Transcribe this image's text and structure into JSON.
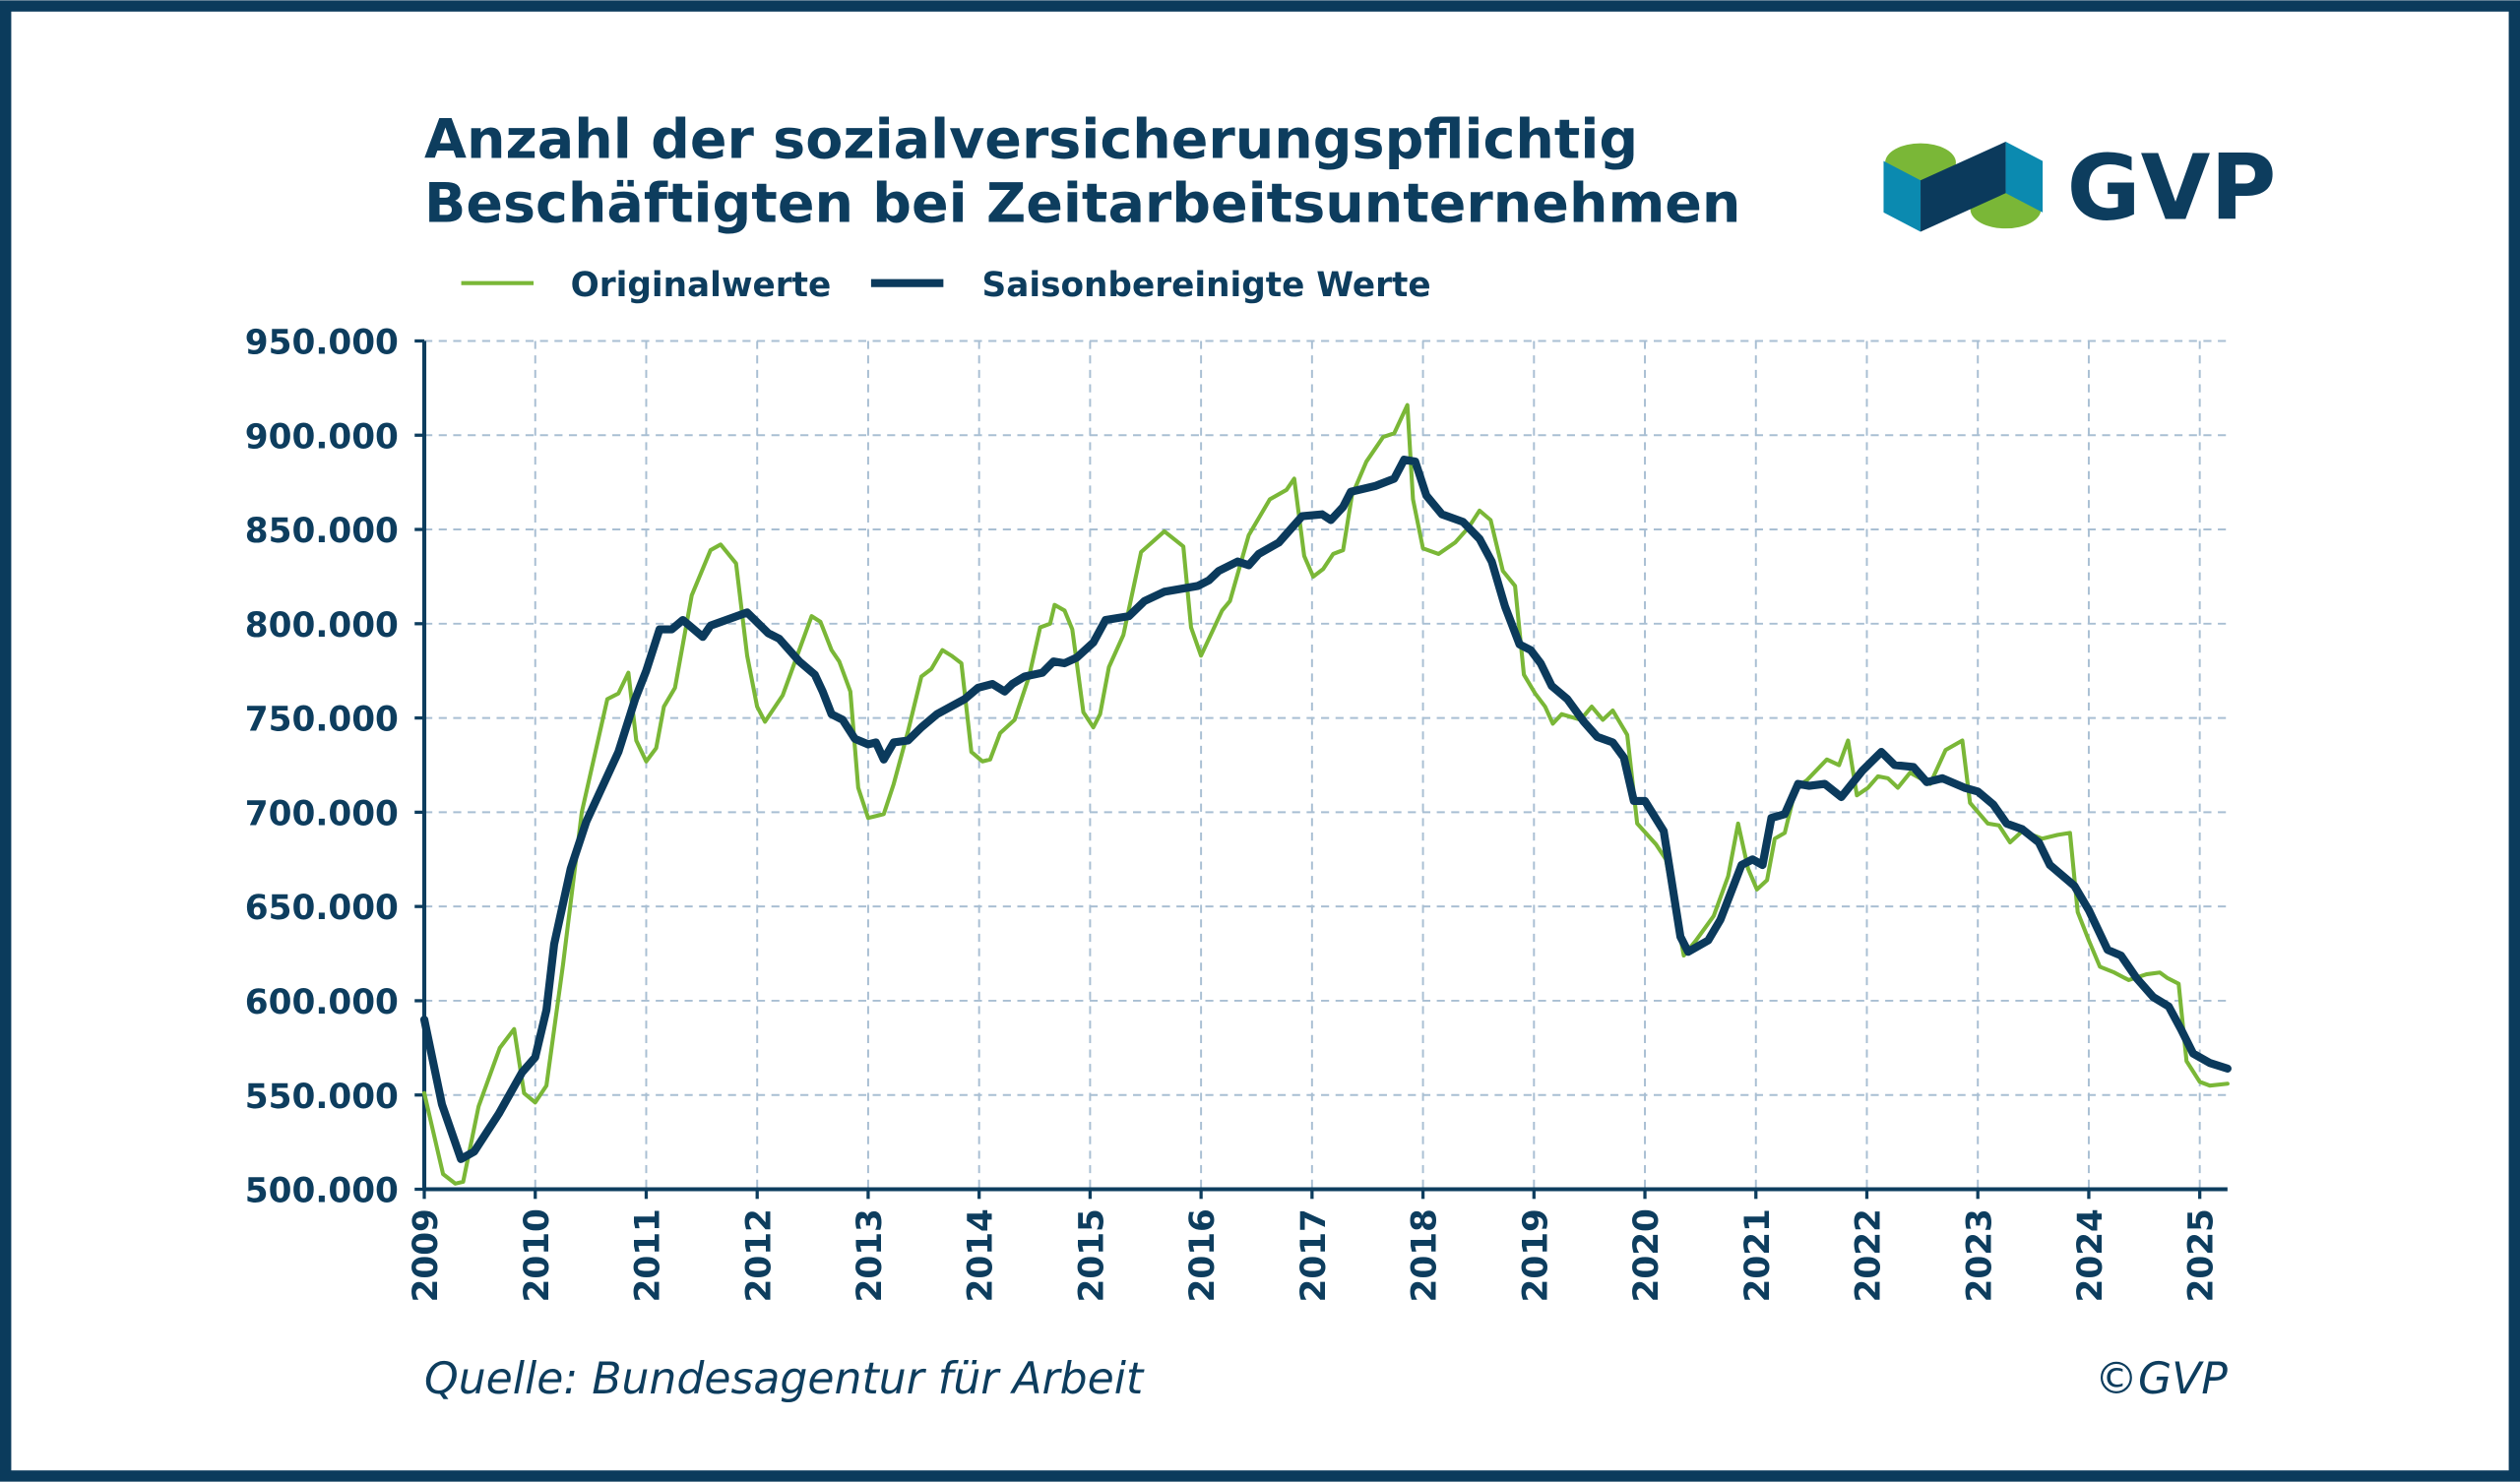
{
  "chart_data": {
    "type": "line",
    "title": [
      "Anzahl der sozialversicherungspflichtig",
      "Beschäftigten bei Zeitarbeitsunternehmen"
    ],
    "logo_text": "GVP",
    "source": "Quelle: Bundesagentur für Arbeit",
    "copyright": "©GVP",
    "grid": true,
    "xlim": [
      2009,
      2025.25
    ],
    "xticks": [
      2009,
      2010,
      2011,
      2012,
      2013,
      2014,
      2015,
      2016,
      2017,
      2018,
      2019,
      2020,
      2021,
      2022,
      2023,
      2024,
      2025
    ],
    "ylim": [
      500000,
      950000
    ],
    "yticks": [
      {
        "value": 500000,
        "label": "500.000"
      },
      {
        "value": 550000,
        "label": "550.000"
      },
      {
        "value": 600000,
        "label": "600.000"
      },
      {
        "value": 650000,
        "label": "650.000"
      },
      {
        "value": 700000,
        "label": "700.000"
      },
      {
        "value": 750000,
        "label": "750.000"
      },
      {
        "value": 800000,
        "label": "800.000"
      },
      {
        "value": 850000,
        "label": "850.000"
      },
      {
        "value": 900000,
        "label": "900.000"
      },
      {
        "value": 950000,
        "label": "950.000"
      }
    ],
    "series": [
      {
        "name": "Originalwerte",
        "color": "#7ab737",
        "width": 2.5,
        "x": [
          2009.0,
          2009.17,
          2009.28,
          2009.35,
          2009.49,
          2009.68,
          2009.81,
          2009.9,
          2010.0,
          2010.1,
          2010.25,
          2010.42,
          2010.65,
          2010.75,
          2010.84,
          2010.91,
          2011.0,
          2011.09,
          2011.16,
          2011.26,
          2011.41,
          2011.58,
          2011.67,
          2011.81,
          2011.91,
          2012.0,
          2012.07,
          2012.23,
          2012.49,
          2012.57,
          2012.67,
          2012.74,
          2012.84,
          2012.91,
          2013.0,
          2013.14,
          2013.23,
          2013.36,
          2013.48,
          2013.57,
          2013.67,
          2013.75,
          2013.84,
          2013.93,
          2014.03,
          2014.1,
          2014.19,
          2014.32,
          2014.45,
          2014.55,
          2014.64,
          2014.68,
          2014.77,
          2014.84,
          2014.94,
          2015.03,
          2015.09,
          2015.17,
          2015.3,
          2015.46,
          2015.67,
          2015.84,
          2015.91,
          2016.0,
          2016.19,
          2016.26,
          2016.43,
          2016.62,
          2016.77,
          2016.84,
          2016.93,
          2017.01,
          2017.1,
          2017.19,
          2017.28,
          2017.36,
          2017.49,
          2017.64,
          2017.74,
          2017.86,
          2017.91,
          2018.0,
          2018.14,
          2018.29,
          2018.41,
          2018.51,
          2018.61,
          2018.72,
          2018.83,
          2018.91,
          2019.01,
          2019.1,
          2019.17,
          2019.25,
          2019.42,
          2019.52,
          2019.62,
          2019.71,
          2019.84,
          2019.93,
          2020.1,
          2020.19,
          2020.35,
          2020.46,
          2020.62,
          2020.75,
          2020.84,
          2020.93,
          2021.01,
          2021.1,
          2021.17,
          2021.26,
          2021.36,
          2021.46,
          2021.64,
          2021.75,
          2021.83,
          2021.91,
          2022.01,
          2022.1,
          2022.19,
          2022.28,
          2022.39,
          2022.57,
          2022.71,
          2022.86,
          2022.93,
          2023.09,
          2023.19,
          2023.29,
          2023.4,
          2023.58,
          2023.72,
          2023.83,
          2023.9,
          2024.0,
          2024.1,
          2024.23,
          2024.36,
          2024.52,
          2024.64,
          2024.71,
          2024.81,
          2024.88,
          2025.0,
          2025.09,
          2025.25
        ],
        "values": [
          551000,
          508000,
          503000,
          504000,
          544000,
          575000,
          585000,
          551000,
          546000,
          555000,
          619000,
          700000,
          760000,
          763000,
          774000,
          738000,
          727000,
          734000,
          756000,
          766000,
          815000,
          839000,
          842000,
          832000,
          783000,
          756000,
          748000,
          762000,
          804000,
          801000,
          786000,
          780000,
          764000,
          713000,
          697000,
          699000,
          715000,
          743000,
          772000,
          776000,
          786000,
          783000,
          779000,
          732000,
          727000,
          728000,
          742000,
          749000,
          772000,
          798000,
          800000,
          810000,
          807000,
          797000,
          753000,
          745000,
          752000,
          777000,
          794000,
          838000,
          849000,
          841000,
          798000,
          783000,
          807000,
          812000,
          847000,
          866000,
          871000,
          877000,
          836000,
          825000,
          829000,
          837000,
          839000,
          868000,
          886000,
          899000,
          901000,
          916000,
          866000,
          840000,
          837000,
          843000,
          851000,
          860000,
          855000,
          828000,
          820000,
          773000,
          763000,
          756000,
          747000,
          752000,
          749000,
          756000,
          749000,
          754000,
          741000,
          694000,
          683000,
          675000,
          624000,
          632000,
          645000,
          666000,
          694000,
          670000,
          659000,
          664000,
          686000,
          689000,
          713000,
          717000,
          728000,
          725000,
          738000,
          709000,
          713000,
          719000,
          718000,
          713000,
          721000,
          715000,
          733000,
          738000,
          705000,
          694000,
          693000,
          684000,
          690000,
          686000,
          688000,
          689000,
          647000,
          632000,
          618000,
          615000,
          611000,
          614000,
          615000,
          612000,
          609000,
          568000,
          557000,
          555000,
          556000
        ]
      },
      {
        "name": "Saisonbereinigte Werte",
        "color": "#0b3a5c",
        "width": 5,
        "x": [
          2009.0,
          2009.16,
          2009.33,
          2009.45,
          2009.67,
          2009.88,
          2010.0,
          2010.1,
          2010.17,
          2010.32,
          2010.46,
          2010.75,
          2010.9,
          2011.0,
          2011.12,
          2011.23,
          2011.33,
          2011.51,
          2011.58,
          2011.91,
          2012.1,
          2012.2,
          2012.38,
          2012.52,
          2012.59,
          2012.67,
          2012.77,
          2012.88,
          2013.0,
          2013.07,
          2013.14,
          2013.23,
          2013.36,
          2013.48,
          2013.62,
          2013.87,
          2013.99,
          2014.12,
          2014.23,
          2014.3,
          2014.41,
          2014.57,
          2014.67,
          2014.77,
          2014.88,
          2015.03,
          2015.14,
          2015.35,
          2015.49,
          2015.67,
          2015.97,
          2016.07,
          2016.16,
          2016.33,
          2016.43,
          2016.52,
          2016.7,
          2016.91,
          2017.09,
          2017.17,
          2017.28,
          2017.35,
          2017.57,
          2017.74,
          2017.83,
          2017.93,
          2018.03,
          2018.17,
          2018.36,
          2018.51,
          2018.62,
          2018.74,
          2018.87,
          2018.97,
          2019.06,
          2019.16,
          2019.3,
          2019.45,
          2019.57,
          2019.71,
          2019.81,
          2019.9,
          2020.0,
          2020.17,
          2020.32,
          2020.39,
          2020.57,
          2020.68,
          2020.87,
          2020.97,
          2021.06,
          2021.14,
          2021.26,
          2021.38,
          2021.48,
          2021.62,
          2021.77,
          2021.96,
          2022.13,
          2022.25,
          2022.42,
          2022.54,
          2022.68,
          2022.88,
          2023.0,
          2023.14,
          2023.26,
          2023.4,
          2023.55,
          2023.65,
          2023.87,
          2024.0,
          2024.17,
          2024.29,
          2024.43,
          2024.58,
          2024.72,
          2024.83,
          2024.94,
          2025.09,
          2025.25
        ],
        "values": [
          590000,
          545000,
          516000,
          520000,
          540000,
          562000,
          570000,
          595000,
          630000,
          670000,
          695000,
          732000,
          760000,
          775000,
          797000,
          797000,
          802000,
          793000,
          799000,
          806000,
          795000,
          792000,
          780000,
          773000,
          764000,
          752000,
          749000,
          739000,
          736000,
          737000,
          728000,
          737000,
          738000,
          745000,
          752000,
          760000,
          766000,
          768000,
          764000,
          768000,
          772000,
          774000,
          780000,
          779000,
          782000,
          790000,
          802000,
          804000,
          812000,
          817000,
          820000,
          823000,
          828000,
          833000,
          831000,
          837000,
          843000,
          857000,
          858000,
          855000,
          862000,
          870000,
          873000,
          877000,
          887000,
          886000,
          868000,
          858000,
          854000,
          845000,
          833000,
          809000,
          789000,
          786000,
          779000,
          767000,
          760000,
          748000,
          740000,
          737000,
          729000,
          706000,
          706000,
          690000,
          634000,
          626000,
          632000,
          643000,
          672000,
          675000,
          672000,
          697000,
          699000,
          715000,
          714000,
          715000,
          708000,
          722000,
          732000,
          725000,
          724000,
          716000,
          718000,
          713000,
          711000,
          704000,
          694000,
          691000,
          684000,
          672000,
          661000,
          648000,
          627000,
          624000,
          612000,
          602000,
          597000,
          585000,
          572000,
          567000,
          564000
        ]
      }
    ]
  }
}
